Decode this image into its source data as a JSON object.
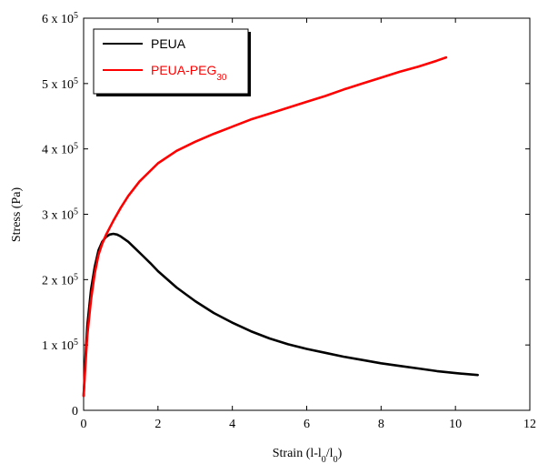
{
  "chart_data": {
    "type": "line",
    "title": "",
    "xlabel": "Strain (l-l",
    "xlabel_sub1": "0",
    "xlabel_mid": "/l",
    "xlabel_sub2": "0",
    "xlabel_end": ")",
    "ylabel": "Stress (Pa)",
    "xlim": [
      0,
      12
    ],
    "ylim": [
      0,
      600000
    ],
    "x_ticks": [
      "0",
      "2",
      "4",
      "6",
      "8",
      "10",
      "12"
    ],
    "y_ticks": [
      {
        "value": 0,
        "mantissa": "0",
        "base": "",
        "exp": ""
      },
      {
        "value": 100000,
        "mantissa": "1 x 10",
        "base": "",
        "exp": "5"
      },
      {
        "value": 200000,
        "mantissa": "2 x 10",
        "base": "",
        "exp": "5"
      },
      {
        "value": 300000,
        "mantissa": "3 x 10",
        "base": "",
        "exp": "5"
      },
      {
        "value": 400000,
        "mantissa": "4 x 10",
        "base": "",
        "exp": "5"
      },
      {
        "value": 500000,
        "mantissa": "5 x 10",
        "base": "",
        "exp": "5"
      },
      {
        "value": 600000,
        "mantissa": "6 x 10",
        "base": "",
        "exp": "5"
      }
    ],
    "grid": false,
    "legend_position": "top-left",
    "series": [
      {
        "name": "PEUA",
        "name_sub": "",
        "color": "#000000",
        "x": [
          0,
          0.05,
          0.1,
          0.2,
          0.3,
          0.4,
          0.5,
          0.6,
          0.7,
          0.8,
          0.9,
          1.0,
          1.2,
          1.4,
          1.6,
          1.8,
          2.0,
          2.5,
          3.0,
          3.5,
          4.0,
          4.5,
          5.0,
          5.5,
          6.0,
          6.5,
          7.0,
          7.5,
          8.0,
          8.5,
          9.0,
          9.5,
          10.0,
          10.6
        ],
        "y": [
          22000,
          80000,
          130000,
          185000,
          220000,
          245000,
          258000,
          265000,
          269000,
          270000,
          269000,
          266000,
          258000,
          247000,
          236000,
          225000,
          213000,
          188000,
          167000,
          149000,
          134000,
          121000,
          110000,
          101000,
          94000,
          88000,
          82000,
          77000,
          72000,
          68000,
          64000,
          60000,
          57000,
          54000
        ]
      },
      {
        "name": "PEUA-PEG",
        "name_sub": "30",
        "color": "#ff0000",
        "x": [
          0,
          0.05,
          0.1,
          0.2,
          0.3,
          0.4,
          0.5,
          0.6,
          0.8,
          1.0,
          1.2,
          1.5,
          2.0,
          2.5,
          3.0,
          3.5,
          4.0,
          4.5,
          5.0,
          5.5,
          6.0,
          6.5,
          7.0,
          7.5,
          8.0,
          8.5,
          9.0,
          9.5,
          9.75
        ],
        "y": [
          22000,
          70000,
          115000,
          170000,
          210000,
          238000,
          255000,
          268000,
          290000,
          310000,
          328000,
          350000,
          378000,
          397000,
          411000,
          423000,
          434000,
          445000,
          454000,
          463000,
          472000,
          481000,
          491000,
          500000,
          509000,
          518000,
          526000,
          535000,
          540000
        ]
      }
    ]
  }
}
